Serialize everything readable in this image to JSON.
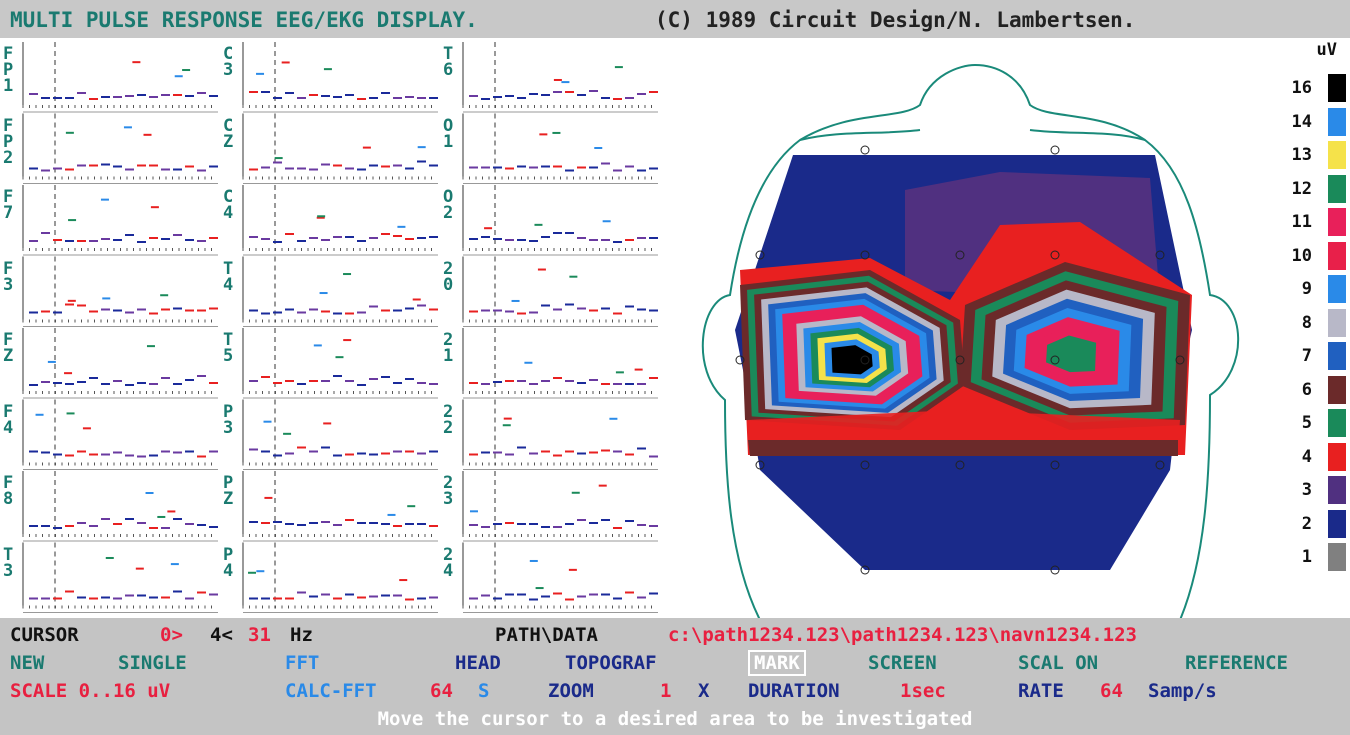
{
  "header": {
    "title": "MULTI PULSE RESPONSE EEG/EKG DISPLAY.",
    "copyright": "(C) 1989 Circuit Design/N. Lambertsen."
  },
  "channels": [
    "FP1",
    "FP2",
    "F7",
    "F3",
    "FZ",
    "F4",
    "F8",
    "T3",
    "C3",
    "CZ",
    "C4",
    "T4",
    "T5",
    "P3",
    "PZ",
    "P4",
    "T6",
    "O1",
    "O2",
    "20",
    "21",
    "22",
    "23",
    "24"
  ],
  "legend": {
    "unit": "uV",
    "levels": [
      {
        "label": "16",
        "color": "#000000"
      },
      {
        "label": "14",
        "color": "#2a8ae8"
      },
      {
        "label": "13",
        "color": "#f5e24a"
      },
      {
        "label": "12",
        "color": "#1a8a5a"
      },
      {
        "label": "11",
        "color": "#e8205a"
      },
      {
        "label": "10",
        "color": "#e8204a"
      },
      {
        "label": "9",
        "color": "#2a8ae8"
      },
      {
        "label": "8",
        "color": "#b8b8c8"
      },
      {
        "label": "7",
        "color": "#2060c0"
      },
      {
        "label": "6",
        "color": "#6b2a2a"
      },
      {
        "label": "5",
        "color": "#1a8a5a"
      },
      {
        "label": "4",
        "color": "#e82020"
      },
      {
        "label": "3",
        "color": "#503080"
      },
      {
        "label": "2",
        "color": "#1a2a8a"
      },
      {
        "label": "1",
        "color": "#808080"
      }
    ]
  },
  "status": {
    "cursor_line": [
      "CURSOR",
      "0>",
      "4<",
      "31",
      "Hz",
      "PATH\\DATA",
      "c:\\path1234.123\\path1234.123\\navn1234.123"
    ],
    "menu": [
      "NEW",
      "SINGLE",
      "FFT",
      "HEAD",
      "TOPOGRAF",
      "MARK",
      "SCREEN",
      "SCAL ON",
      "REFERENCE"
    ],
    "settings": [
      "SCALE 0..16 uV",
      "CALC-FFT",
      "64",
      "S",
      "ZOOM",
      "1",
      "X",
      "DURATION",
      "1sec",
      "RATE",
      "64",
      "Samp/s"
    ],
    "message": "Move the cursor to a desired area to be investigated"
  }
}
